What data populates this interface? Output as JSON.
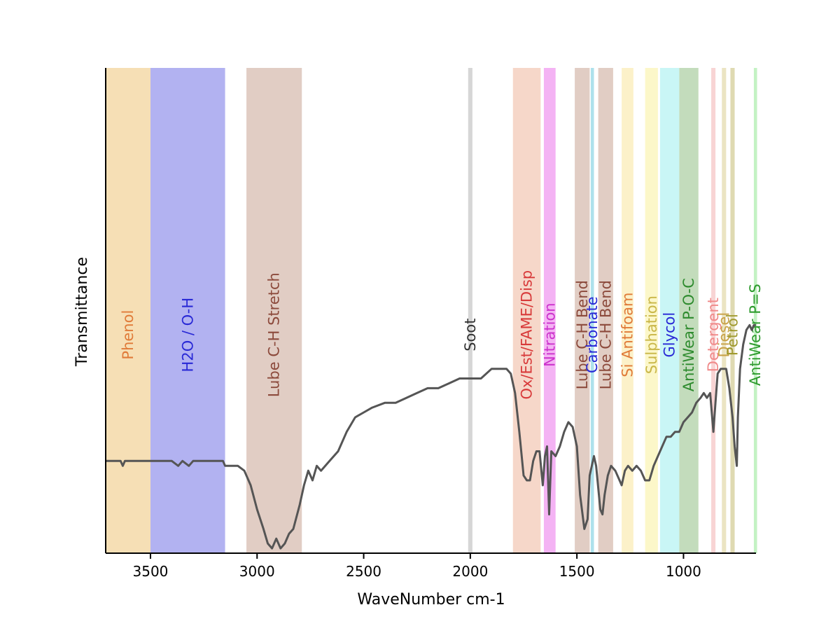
{
  "chart_data": {
    "type": "line",
    "xlabel": "WaveNumber cm-1",
    "ylabel": "Transmittance",
    "xlim": [
      3710,
      660
    ],
    "ylim": [
      0,
      1
    ],
    "x_ticks": [
      3500,
      3000,
      2500,
      2000,
      1500,
      1000
    ],
    "x_tick_labels": [
      "3500",
      "3000",
      "2500",
      "2000",
      "1500",
      "1000"
    ],
    "line_color": "#555555",
    "bands": [
      {
        "label": "Phenol",
        "from": 3710,
        "to": 3500,
        "fill": "#f5d9a8",
        "text_color": "#e07b39",
        "label_y": 0.5
      },
      {
        "label": "H2O / O-H",
        "from": 3500,
        "to": 3150,
        "fill": "#a5a5ee",
        "text_color": "#2929d6",
        "label_y": 0.5
      },
      {
        "label": "Lube C-H Stretch",
        "from": 3050,
        "to": 2790,
        "fill": "#dcc4ba",
        "text_color": "#8c4a3c",
        "label_y": 0.5
      },
      {
        "label": "Soot",
        "from": 2010,
        "to": 1990,
        "fill": "#cfcfcf",
        "text_color": "#333333",
        "label_y": 0.5
      },
      {
        "label": "Ox/Est/FAME/Disp",
        "from": 1800,
        "to": 1670,
        "fill": "#f5d0c0",
        "text_color": "#d83a3a",
        "label_y": 0.5
      },
      {
        "label": "Nitration",
        "from": 1655,
        "to": 1600,
        "fill": "#f2a6f2",
        "text_color": "#cc33cc",
        "label_y": 0.5
      },
      {
        "label": "Lube C-H Bend",
        "from": 1510,
        "to": 1440,
        "fill": "#dcc4ba",
        "text_color": "#8c4a3c",
        "label_y": 0.5
      },
      {
        "label": "Carbonate",
        "from": 1435,
        "to": 1420,
        "fill": "#9fdce8",
        "text_color": "#2929d6",
        "label_y": 0.5
      },
      {
        "label": "Lube C-H Bend",
        "from": 1400,
        "to": 1330,
        "fill": "#dcc4ba",
        "text_color": "#8c4a3c",
        "label_y": 0.5
      },
      {
        "label": "Si Antifoam",
        "from": 1290,
        "to": 1235,
        "fill": "#fbeec0",
        "text_color": "#e07b39",
        "label_y": 0.5
      },
      {
        "label": "Sulphation",
        "from": 1180,
        "to": 1120,
        "fill": "#fbf6c0",
        "text_color": "#c9b648",
        "label_y": 0.5
      },
      {
        "label": "Glycol",
        "from": 1110,
        "to": 1020,
        "fill": "#bff5f5",
        "text_color": "#2929d6",
        "label_y": 0.5
      },
      {
        "label": "AntiWear P-O-C",
        "from": 1020,
        "to": 930,
        "fill": "#b8d6b0",
        "text_color": "#2e8b2e",
        "label_y": 0.5
      },
      {
        "label": "Detergent",
        "from": 870,
        "to": 850,
        "fill": "#f7cccc",
        "text_color": "#f08a8a",
        "label_y": 0.5
      },
      {
        "label": "Diesel",
        "from": 820,
        "to": 800,
        "fill": "#e8dfb8",
        "text_color": "#c9a248",
        "label_y": 0.5
      },
      {
        "label": "Petrol",
        "from": 780,
        "to": 760,
        "fill": "#d9d4a5",
        "text_color": "#a09a30",
        "label_y": 0.5
      },
      {
        "label": "AntiWear P=S",
        "from": 670,
        "to": 655,
        "fill": "#b8f0b8",
        "text_color": "#2e9b2e",
        "label_y": 0.5
      }
    ],
    "spectrum": [
      [
        3710,
        0.19
      ],
      [
        3640,
        0.19
      ],
      [
        3630,
        0.18
      ],
      [
        3620,
        0.19
      ],
      [
        3600,
        0.19
      ],
      [
        3500,
        0.19
      ],
      [
        3400,
        0.19
      ],
      [
        3370,
        0.18
      ],
      [
        3350,
        0.19
      ],
      [
        3320,
        0.18
      ],
      [
        3300,
        0.19
      ],
      [
        3200,
        0.19
      ],
      [
        3160,
        0.19
      ],
      [
        3150,
        0.18
      ],
      [
        3090,
        0.18
      ],
      [
        3060,
        0.17
      ],
      [
        3030,
        0.14
      ],
      [
        3000,
        0.09
      ],
      [
        2970,
        0.05
      ],
      [
        2950,
        0.02
      ],
      [
        2930,
        0.01
      ],
      [
        2910,
        0.03
      ],
      [
        2890,
        0.01
      ],
      [
        2870,
        0.02
      ],
      [
        2850,
        0.04
      ],
      [
        2830,
        0.05
      ],
      [
        2800,
        0.1
      ],
      [
        2780,
        0.14
      ],
      [
        2760,
        0.17
      ],
      [
        2740,
        0.15
      ],
      [
        2720,
        0.18
      ],
      [
        2700,
        0.17
      ],
      [
        2660,
        0.19
      ],
      [
        2620,
        0.21
      ],
      [
        2580,
        0.25
      ],
      [
        2540,
        0.28
      ],
      [
        2500,
        0.29
      ],
      [
        2460,
        0.3
      ],
      [
        2400,
        0.31
      ],
      [
        2350,
        0.31
      ],
      [
        2300,
        0.32
      ],
      [
        2250,
        0.33
      ],
      [
        2200,
        0.34
      ],
      [
        2150,
        0.34
      ],
      [
        2100,
        0.35
      ],
      [
        2050,
        0.36
      ],
      [
        2000,
        0.36
      ],
      [
        1950,
        0.36
      ],
      [
        1900,
        0.38
      ],
      [
        1860,
        0.38
      ],
      [
        1830,
        0.38
      ],
      [
        1810,
        0.37
      ],
      [
        1790,
        0.33
      ],
      [
        1770,
        0.25
      ],
      [
        1750,
        0.16
      ],
      [
        1735,
        0.15
      ],
      [
        1720,
        0.15
      ],
      [
        1705,
        0.19
      ],
      [
        1690,
        0.21
      ],
      [
        1675,
        0.21
      ],
      [
        1660,
        0.14
      ],
      [
        1650,
        0.2
      ],
      [
        1640,
        0.22
      ],
      [
        1630,
        0.08
      ],
      [
        1620,
        0.21
      ],
      [
        1600,
        0.2
      ],
      [
        1580,
        0.22
      ],
      [
        1560,
        0.25
      ],
      [
        1540,
        0.27
      ],
      [
        1520,
        0.26
      ],
      [
        1500,
        0.22
      ],
      [
        1485,
        0.12
      ],
      [
        1465,
        0.05
      ],
      [
        1450,
        0.07
      ],
      [
        1440,
        0.16
      ],
      [
        1420,
        0.2
      ],
      [
        1410,
        0.18
      ],
      [
        1390,
        0.09
      ],
      [
        1380,
        0.08
      ],
      [
        1370,
        0.12
      ],
      [
        1355,
        0.16
      ],
      [
        1340,
        0.18
      ],
      [
        1320,
        0.17
      ],
      [
        1300,
        0.15
      ],
      [
        1290,
        0.14
      ],
      [
        1275,
        0.17
      ],
      [
        1260,
        0.18
      ],
      [
        1240,
        0.17
      ],
      [
        1220,
        0.18
      ],
      [
        1200,
        0.17
      ],
      [
        1180,
        0.15
      ],
      [
        1160,
        0.15
      ],
      [
        1140,
        0.18
      ],
      [
        1120,
        0.2
      ],
      [
        1100,
        0.22
      ],
      [
        1080,
        0.24
      ],
      [
        1060,
        0.24
      ],
      [
        1040,
        0.25
      ],
      [
        1020,
        0.25
      ],
      [
        1000,
        0.27
      ],
      [
        980,
        0.28
      ],
      [
        960,
        0.29
      ],
      [
        940,
        0.31
      ],
      [
        920,
        0.32
      ],
      [
        905,
        0.33
      ],
      [
        890,
        0.32
      ],
      [
        875,
        0.33
      ],
      [
        860,
        0.25
      ],
      [
        850,
        0.31
      ],
      [
        840,
        0.37
      ],
      [
        825,
        0.38
      ],
      [
        810,
        0.38
      ],
      [
        800,
        0.38
      ],
      [
        785,
        0.34
      ],
      [
        770,
        0.28
      ],
      [
        760,
        0.22
      ],
      [
        750,
        0.18
      ],
      [
        745,
        0.28
      ],
      [
        735,
        0.38
      ],
      [
        720,
        0.43
      ],
      [
        705,
        0.46
      ],
      [
        690,
        0.47
      ],
      [
        680,
        0.46
      ],
      [
        670,
        0.47
      ],
      [
        660,
        0.47
      ]
    ]
  }
}
